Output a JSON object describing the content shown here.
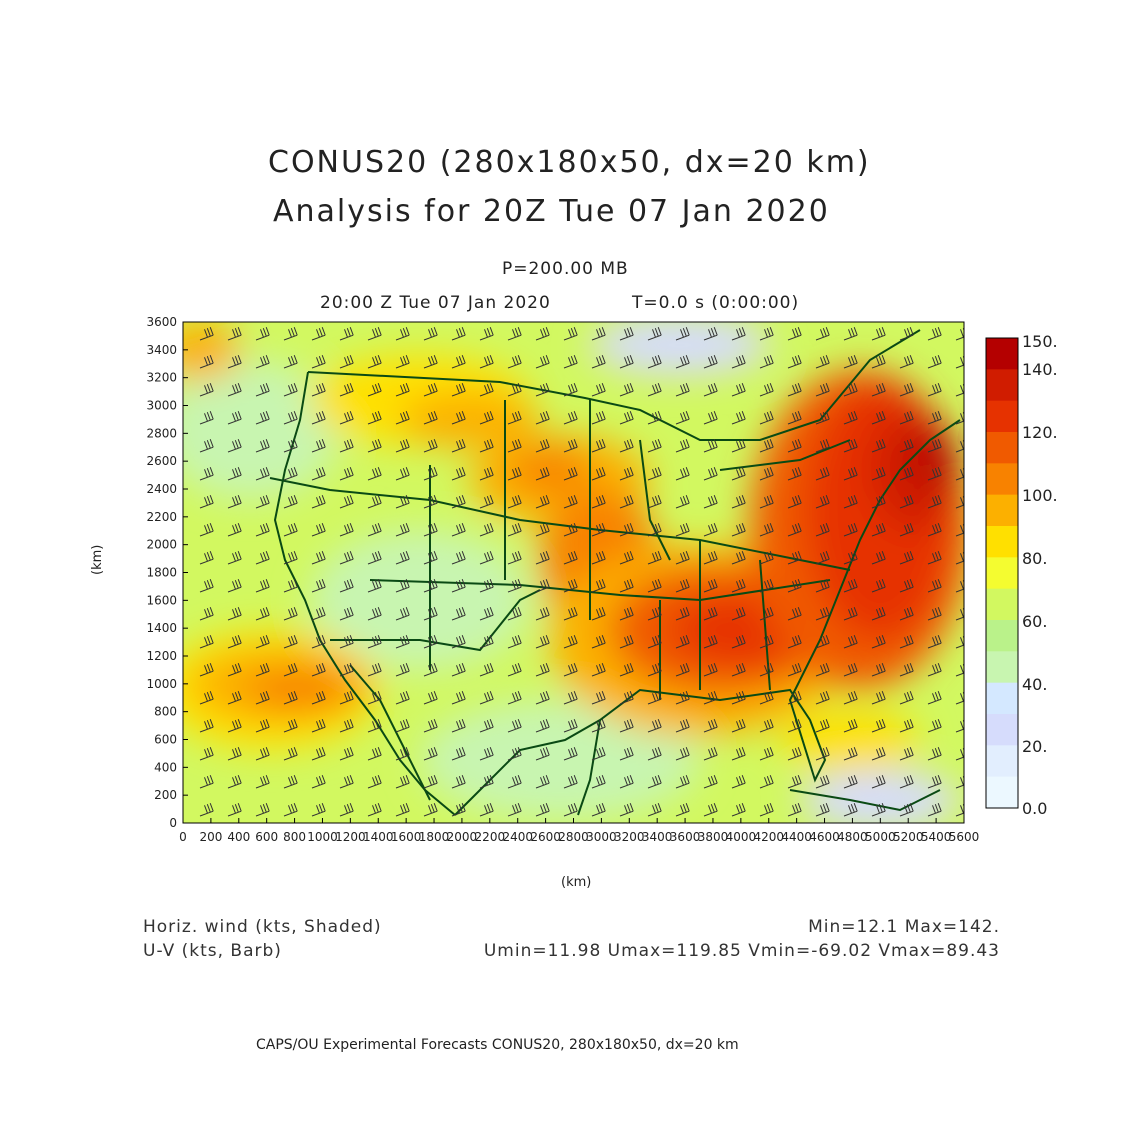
{
  "header": {
    "title_line1": "CONUS20 (280x180x50, dx=20 km)",
    "title_line2": "Analysis for 20Z Tue 07 Jan 2020",
    "level": "P=200.00 MB",
    "valid_time": "20:00 Z Tue 07 Jan 2020",
    "forecast_time": "T=0.0 s (0:00:00)"
  },
  "axes": {
    "x_ticks": [
      "0",
      "200",
      "400",
      "600",
      "800",
      "1000",
      "1200",
      "1400",
      "1600",
      "1800",
      "2000",
      "2200",
      "2400",
      "2600",
      "2800",
      "3000",
      "3200",
      "3400",
      "3600",
      "3800",
      "4000",
      "4200",
      "4400",
      "4600",
      "4800",
      "5000",
      "5200",
      "5400",
      "5600"
    ],
    "y_ticks": [
      "0",
      "200",
      "400",
      "600",
      "800",
      "1000",
      "1200",
      "1400",
      "1600",
      "1800",
      "2000",
      "2200",
      "2400",
      "2600",
      "2800",
      "3000",
      "3200",
      "3400",
      "3600"
    ],
    "x_label": "(km)",
    "y_label": "(km)"
  },
  "colorbar": {
    "labels": [
      "150.",
      "140.",
      "120.",
      "100.",
      "80.",
      "60.",
      "40.",
      "20.",
      "0.0"
    ],
    "colors": [
      "#b40000",
      "#d01c00",
      "#e63200",
      "#f05a00",
      "#f88200",
      "#fcb000",
      "#ffe000",
      "#f4fc30",
      "#d2f860",
      "#baf28a",
      "#c8f5b0",
      "#d4e8ff",
      "#d6dcfc",
      "#e2eefe",
      "#ecf8ff"
    ]
  },
  "legend": {
    "field1": "Horiz. wind (kts, Shaded)",
    "field2": "U-V (kts, Barb)",
    "minmax": "Min=12.1  Max=142.",
    "uv_stats": "Umin=11.98  Umax=119.85  Vmin=-69.02  Vmax=89.43"
  },
  "footer": "CAPS/OU Experimental Forecasts   CONUS20, 280x180x50, dx=20 km"
}
